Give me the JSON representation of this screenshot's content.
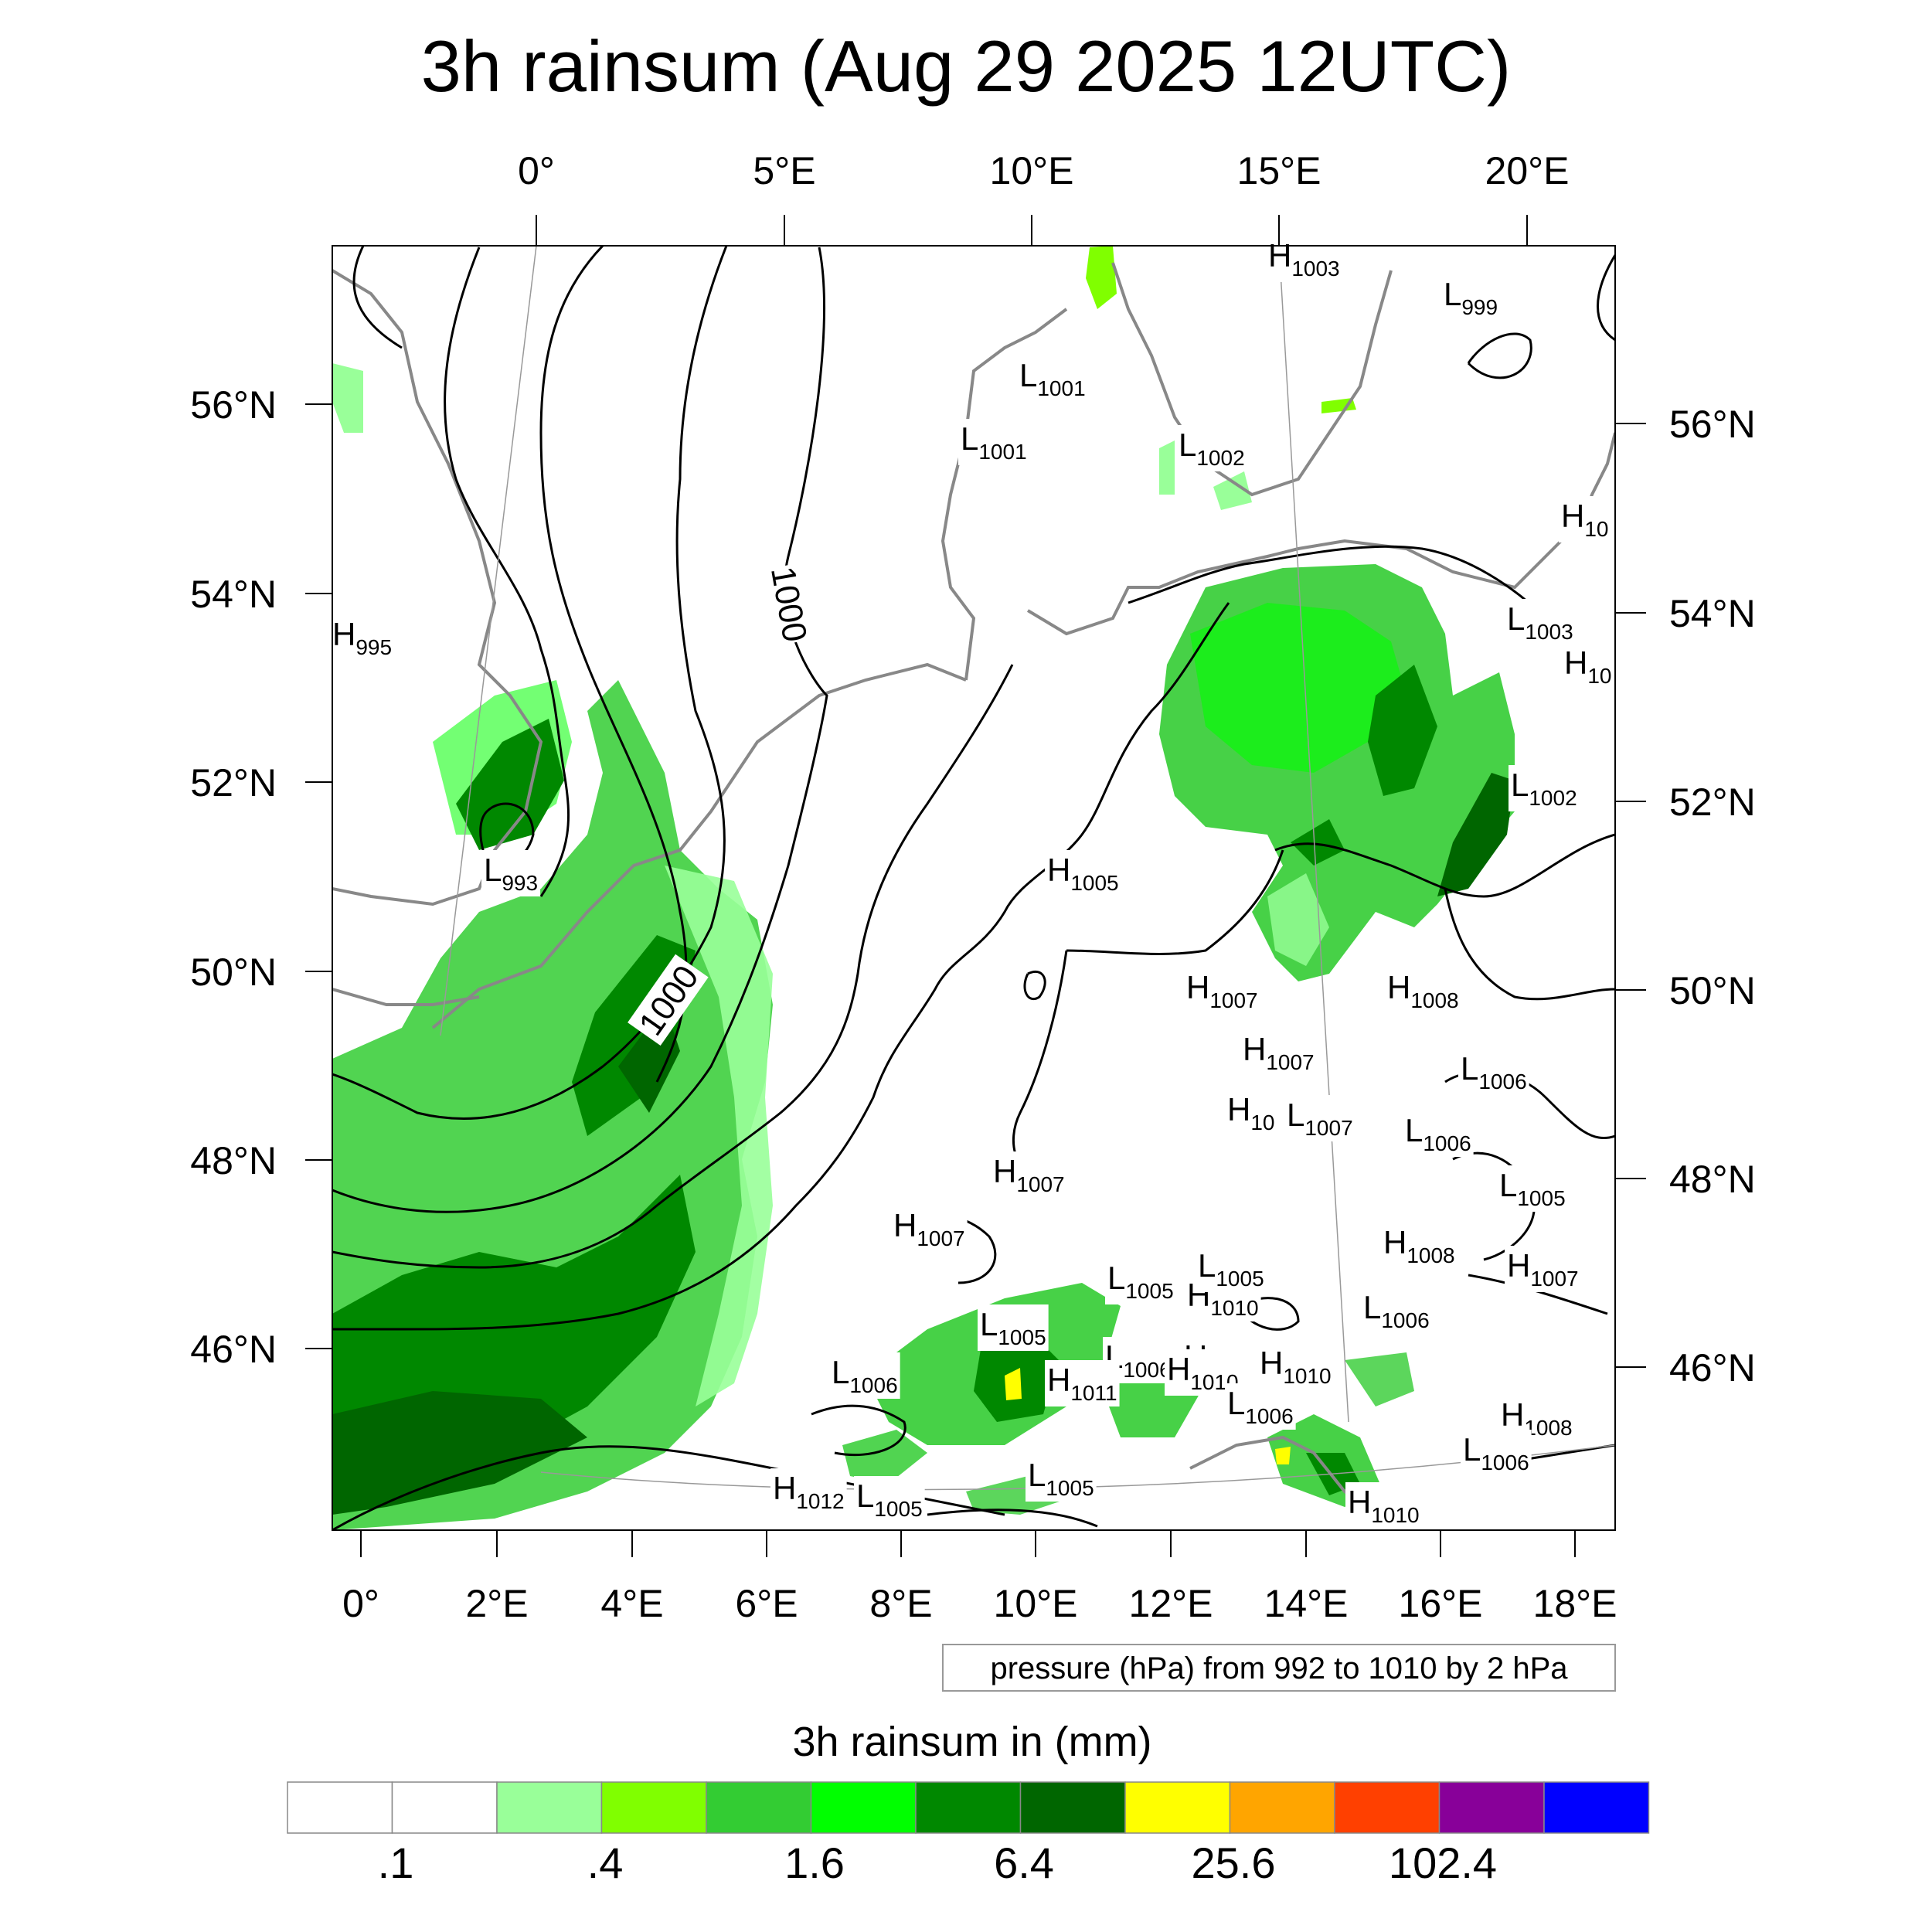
{
  "title": "3h rainsum (Aug 29 2025 12UTC)",
  "top_lon_labels": [
    "0°",
    "5°E",
    "10°E",
    "15°E",
    "20°E"
  ],
  "bottom_lon_labels": [
    "0°",
    "2°E",
    "4°E",
    "6°E",
    "8°E",
    "10°E",
    "12°E",
    "14°E",
    "16°E",
    "18°E"
  ],
  "left_lat_labels": [
    "56°N",
    "54°N",
    "52°N",
    "50°N",
    "48°N",
    "46°N"
  ],
  "right_lat_labels": [
    "56°N",
    "54°N",
    "52°N",
    "50°N",
    "48°N",
    "46°N"
  ],
  "contour_labels": [
    "1000",
    "1000"
  ],
  "pressure_centers": [
    {
      "t": "H",
      "v": "1003"
    },
    {
      "t": "L",
      "v": "999"
    },
    {
      "t": "L",
      "v": "1001"
    },
    {
      "t": "L",
      "v": "1001"
    },
    {
      "t": "L",
      "v": "1002"
    },
    {
      "t": "H",
      "v": "10"
    },
    {
      "t": "H",
      "v": "995"
    },
    {
      "t": "L",
      "v": "1003"
    },
    {
      "t": "H",
      "v": "10"
    },
    {
      "t": "L",
      "v": "1002"
    },
    {
      "t": "L",
      "v": "993"
    },
    {
      "t": "H",
      "v": "1005"
    },
    {
      "t": "H",
      "v": "1007"
    },
    {
      "t": "H",
      "v": "1008"
    },
    {
      "t": "H",
      "v": "1007"
    },
    {
      "t": "L",
      "v": "1006"
    },
    {
      "t": "H",
      "v": "10"
    },
    {
      "t": "L",
      "v": "1007"
    },
    {
      "t": "L",
      "v": "1006"
    },
    {
      "t": "H",
      "v": "1007"
    },
    {
      "t": "L",
      "v": "1005"
    },
    {
      "t": "H",
      "v": "1007"
    },
    {
      "t": "H",
      "v": "1008"
    },
    {
      "t": "H",
      "v": "1007"
    },
    {
      "t": "L",
      "v": "1005"
    },
    {
      "t": "L",
      "v": "1005"
    },
    {
      "t": "H",
      "v": "1010"
    },
    {
      "t": "L",
      "v": "1006"
    },
    {
      "t": "L",
      "v": "1005"
    },
    {
      "t": "H",
      "v": "10"
    },
    {
      "t": "L",
      "v": "1006"
    },
    {
      "t": "H",
      "v": "1010"
    },
    {
      "t": "L",
      "v": "1006"
    },
    {
      "t": "H",
      "v": "1011"
    },
    {
      "t": "H",
      "v": "1010"
    },
    {
      "t": "L",
      "v": "1006"
    },
    {
      "t": "H",
      "v": "1008"
    },
    {
      "t": "L",
      "v": "1006"
    },
    {
      "t": "L",
      "v": "1005"
    },
    {
      "t": "H",
      "v": "1012"
    },
    {
      "t": "L",
      "v": "1005"
    },
    {
      "t": "H",
      "v": "1010"
    }
  ],
  "info_box": "pressure (hPa) from 992 to 1010 by 2 hPa",
  "colorbar": {
    "title": "3h rainsum in (mm)",
    "colors": [
      "#ffffff",
      "#ffffff",
      "#99ff99",
      "#80ff00",
      "#33cc33",
      "#00ff00",
      "#008800",
      "#006600",
      "#ffff00",
      "#ffa500",
      "#ff4000",
      "#880099",
      "#0000ff"
    ],
    "labels": [
      ".1",
      ".4",
      "1.6",
      "6.4",
      "25.6",
      "102.4"
    ]
  }
}
